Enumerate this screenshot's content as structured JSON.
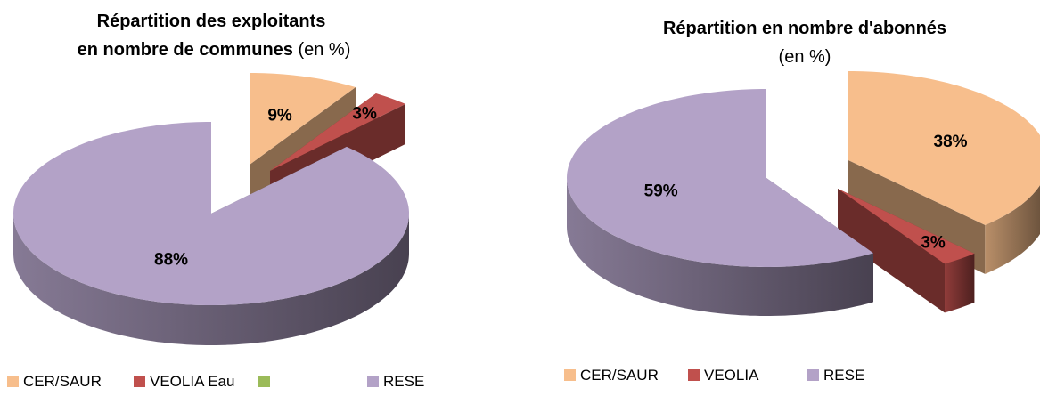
{
  "chart_data": [
    {
      "type": "pie",
      "title": [
        "Répartition des exploitants",
        "en nombre de communes"
      ],
      "subtitle": "(en %)",
      "series": [
        {
          "name": "CER/SAUR",
          "color": "#f7be8c",
          "values": [
            9
          ],
          "value_labels": [
            "9%"
          ]
        },
        {
          "name": "VEOLIA Eau",
          "color": "#c0504d",
          "values": [
            3
          ],
          "value_labels": [
            "3%"
          ]
        },
        {
          "name": null,
          "color": "#9bbb59",
          "values": [
            null
          ],
          "value_labels": [
            null
          ]
        },
        {
          "name": "RESE",
          "color": "#b3a2c7",
          "values": [
            88
          ],
          "value_labels": [
            "88%"
          ]
        }
      ]
    },
    {
      "type": "pie",
      "title": [
        "Répartition en nombre d'abonnés"
      ],
      "subtitle": "(en %)",
      "series": [
        {
          "name": "CER/SAUR",
          "color": "#f7be8c",
          "values": [
            38
          ],
          "value_labels": [
            "38%"
          ]
        },
        {
          "name": "VEOLIA",
          "color": "#c0504d",
          "values": [
            3
          ],
          "value_labels": [
            "3%"
          ]
        },
        {
          "name": "RESE",
          "color": "#b3a2c7",
          "values": [
            59
          ],
          "value_labels": [
            "59%"
          ]
        }
      ]
    }
  ]
}
